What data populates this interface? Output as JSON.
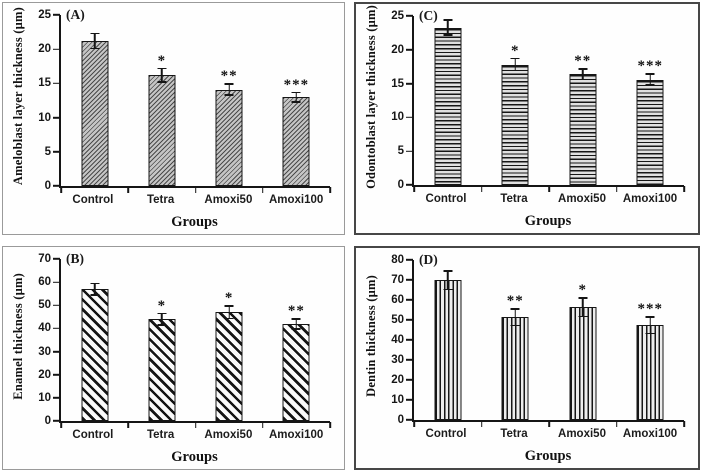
{
  "figure": {
    "kind": "four-panel bar figure with error bars and significance stars",
    "shared_xlabel": "Groups",
    "categories": [
      "Control",
      "Tetra",
      "Amoxi50",
      "Amoxi100"
    ]
  },
  "colors": {
    "background": "#ffffff",
    "axis": "#151515",
    "bar_outline": "#161616",
    "panel_border_left_column": "#9a9a9a",
    "panel_border_right_column": "#474747",
    "text": "#1a1a1a"
  },
  "chart_data": [
    {
      "type": "bar",
      "panel_label": "(A)",
      "position": "top-left",
      "title": "",
      "ylabel": "Ameloblast layer thickness (µm)",
      "xlabel": "Groups",
      "categories": [
        "Control",
        "Tetra",
        "Amoxi50",
        "Amoxi100"
      ],
      "values": [
        21.2,
        16.2,
        14.1,
        13.0
      ],
      "errors": [
        1.2,
        1.1,
        0.9,
        0.8
      ],
      "significance": [
        "",
        "*",
        "**",
        "***"
      ],
      "ylim": [
        0,
        25
      ],
      "ytick_step": 5,
      "hatch": "diagonal-fine",
      "grid": false,
      "legend": null
    },
    {
      "type": "bar",
      "panel_label": "(C)",
      "position": "top-right",
      "title": "",
      "ylabel": "Odontoblast layer thickness (µm)",
      "xlabel": "Groups",
      "categories": [
        "Control",
        "Tetra",
        "Amoxi50",
        "Amoxi100"
      ],
      "values": [
        23.3,
        17.8,
        16.4,
        15.6
      ],
      "errors": [
        1.2,
        1.0,
        0.9,
        0.9
      ],
      "significance": [
        "",
        "*",
        "**",
        "***"
      ],
      "ylim": [
        0,
        25
      ],
      "ytick_step": 5,
      "hatch": "horizontal",
      "grid": false,
      "legend": null
    },
    {
      "type": "bar",
      "panel_label": "(B)",
      "position": "bottom-left",
      "title": "",
      "ylabel": "Enamel thickness (µm)",
      "xlabel": "Groups",
      "categories": [
        "Control",
        "Tetra",
        "Amoxi50",
        "Amoxi100"
      ],
      "values": [
        57,
        44,
        47,
        42
      ],
      "errors": [
        2.8,
        2.8,
        3.0,
        2.5
      ],
      "significance": [
        "",
        "*",
        "*",
        "**"
      ],
      "ylim": [
        0,
        70
      ],
      "ytick_step": 10,
      "hatch": "diagonal-wide",
      "grid": false,
      "legend": null
    },
    {
      "type": "bar",
      "panel_label": "(D)",
      "position": "bottom-right",
      "title": "",
      "ylabel": "Dentin thickness (µm)",
      "xlabel": "Groups",
      "categories": [
        "Control",
        "Tetra",
        "Amoxi50",
        "Amoxi100"
      ],
      "values": [
        70,
        51.5,
        56.5,
        47.5
      ],
      "errors": [
        5,
        4.5,
        5,
        4.5
      ],
      "significance": [
        "",
        "**",
        "*",
        "***"
      ],
      "ylim": [
        0,
        80
      ],
      "ytick_step": 10,
      "hatch": "vertical",
      "grid": false,
      "legend": null
    }
  ]
}
